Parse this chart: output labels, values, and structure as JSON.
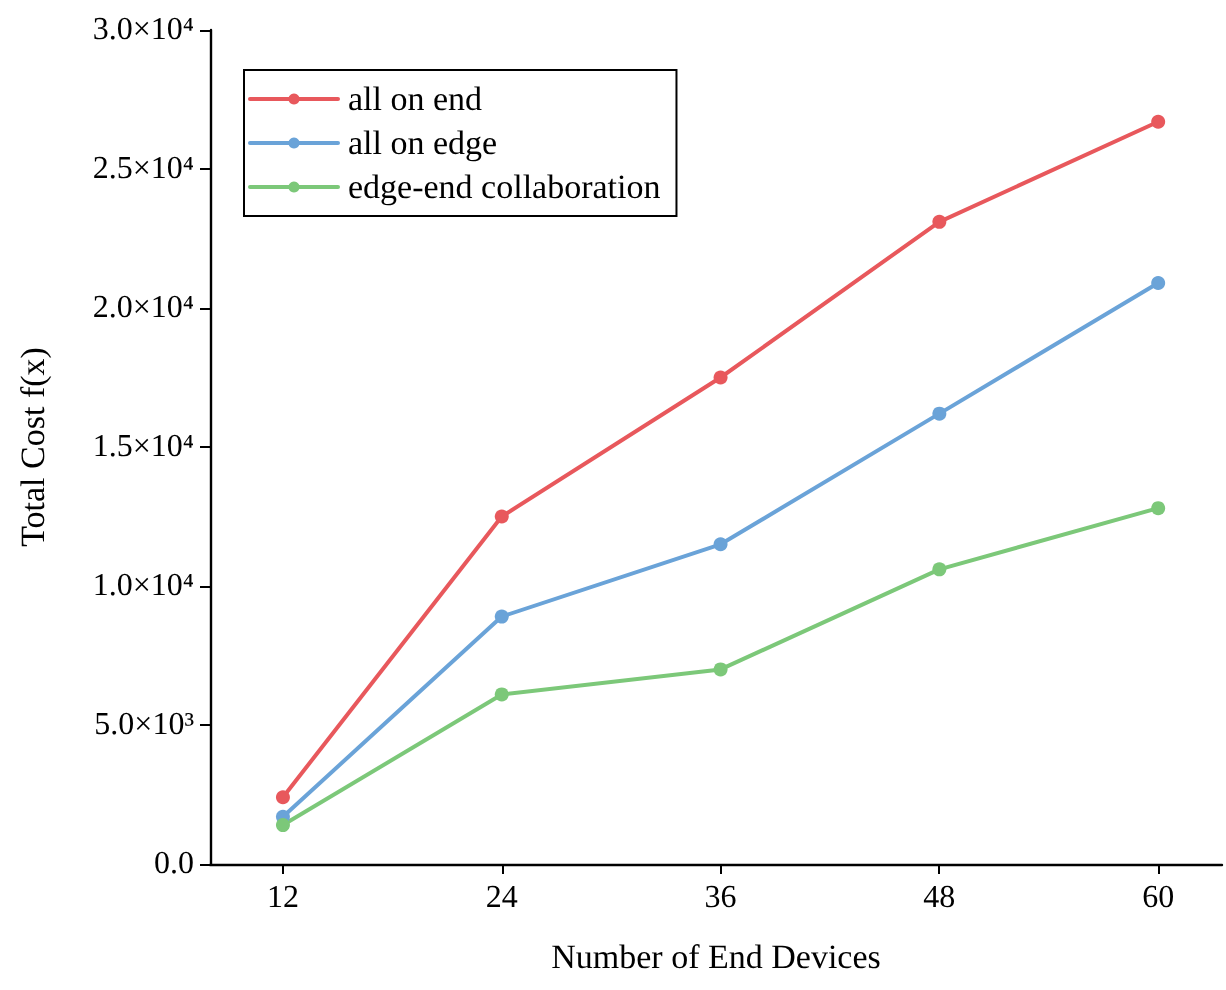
{
  "chart_data": {
    "type": "line",
    "xlabel": "Number of End Devices",
    "ylabel": "Total Cost f(x)",
    "x": [
      12,
      24,
      36,
      48,
      60
    ],
    "xlim": [
      8,
      63.5
    ],
    "xticks": [
      12,
      24,
      36,
      48,
      60
    ],
    "ylim": [
      0,
      30000
    ],
    "yticks": [
      {
        "value": 0,
        "label": "0.0"
      },
      {
        "value": 5000,
        "label": "5.0×10³"
      },
      {
        "value": 10000,
        "label": "1.0×10⁴"
      },
      {
        "value": 15000,
        "label": "1.5×10⁴"
      },
      {
        "value": 20000,
        "label": "2.0×10⁴"
      },
      {
        "value": 25000,
        "label": "2.5×10⁴"
      },
      {
        "value": 30000,
        "label": "3.0×10⁴"
      }
    ],
    "series": [
      {
        "name": "all on end",
        "color": "#e8585c",
        "values": [
          2400,
          12500,
          17500,
          23100,
          26700
        ]
      },
      {
        "name": "all on edge",
        "color": "#6aa3d8",
        "values": [
          1700,
          8900,
          11500,
          16200,
          20900
        ]
      },
      {
        "name": "edge-end collaboration",
        "color": "#7cc879",
        "values": [
          1400,
          6100,
          7000,
          10600,
          12800
        ]
      }
    ],
    "legend": "top left",
    "grid": false,
    "marker": "circle",
    "line_style": "solid"
  }
}
